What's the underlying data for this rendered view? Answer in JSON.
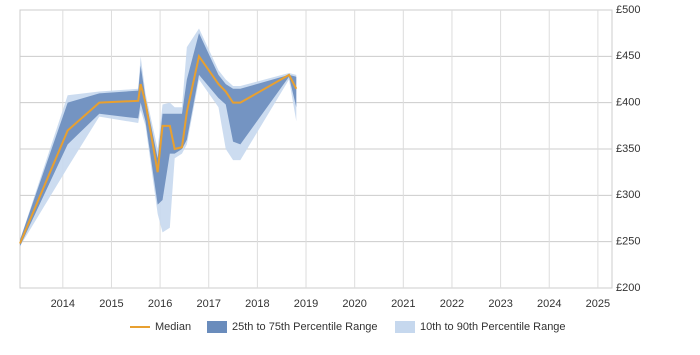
{
  "chart_data": {
    "type": "line-band",
    "x": [
      2013.12,
      2014.1,
      2014.75,
      2015.55,
      2015.6,
      2015.7,
      2015.95,
      2016.05,
      2016.2,
      2016.3,
      2016.45,
      2016.55,
      2016.8,
      2017.2,
      2017.35,
      2017.5,
      2017.65,
      2018.65,
      2018.8
    ],
    "series": [
      {
        "name": "Median",
        "color": "#e8a030",
        "values": [
          248,
          370,
          400,
          402,
          420,
          400,
          325,
          375,
          375,
          350,
          352,
          390,
          450,
          420,
          412,
          400,
          400,
          430,
          415
        ]
      },
      {
        "name": "25th to 75th Percentile Range",
        "color": "#6a8cbc",
        "lower": [
          245,
          355,
          388,
          383,
          400,
          380,
          290,
          295,
          345,
          345,
          350,
          360,
          430,
          405,
          398,
          358,
          355,
          428,
          395
        ],
        "upper": [
          252,
          400,
          410,
          413,
          440,
          405,
          340,
          388,
          388,
          388,
          388,
          425,
          475,
          430,
          420,
          415,
          415,
          430,
          428
        ]
      },
      {
        "name": "10th to 90th Percentile Range",
        "color": "#c6d8ee",
        "lower": [
          245,
          330,
          385,
          378,
          392,
          375,
          280,
          260,
          265,
          340,
          345,
          355,
          425,
          395,
          350,
          338,
          338,
          425,
          380
        ],
        "upper": [
          252,
          408,
          412,
          415,
          450,
          410,
          350,
          398,
          400,
          395,
          395,
          460,
          480,
          435,
          425,
          418,
          418,
          432,
          430
        ]
      }
    ],
    "xlim": [
      2013.12,
      2025.29
    ],
    "xticks": [
      2014,
      2015,
      2016,
      2017,
      2018,
      2019,
      2020,
      2021,
      2022,
      2023,
      2024,
      2025
    ],
    "ylim": [
      200,
      500
    ],
    "yticks": [
      {
        "value": 200,
        "label": "£200"
      },
      {
        "value": 250,
        "label": "£250"
      },
      {
        "value": 300,
        "label": "£300"
      },
      {
        "value": 350,
        "label": "£350"
      },
      {
        "value": 400,
        "label": "£400"
      },
      {
        "value": 450,
        "label": "£450"
      },
      {
        "value": 500,
        "label": "£500"
      }
    ],
    "grid": true
  }
}
